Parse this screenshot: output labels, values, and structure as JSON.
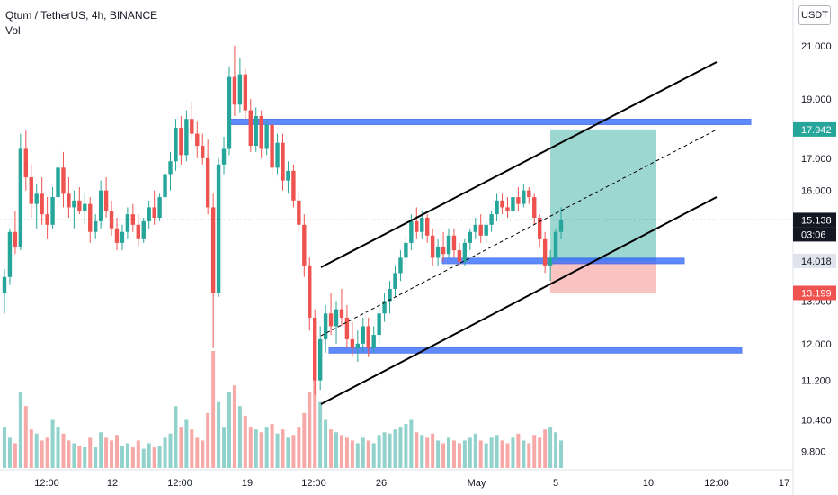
{
  "header": {
    "symbol": "Qtum / TetherUS, 4h, BINANCE",
    "volume_label": "Vol"
  },
  "currency_button": "USDT",
  "colors": {
    "up": "#26a69a",
    "down": "#ef5350",
    "zone_blue": "#2962ff",
    "profit_zone": "#26a69a",
    "loss_zone": "#ef5350",
    "channel": "#000000"
  },
  "price_axis": {
    "ticks": [
      "21.000",
      "19.000",
      "17.000",
      "16.000",
      "13.000",
      "12.000",
      "11.200",
      "10.400",
      "9.800"
    ],
    "scale": "log"
  },
  "time_axis": {
    "ticks": [
      "12:00",
      "12",
      "12:00",
      "19",
      "12:00",
      "26",
      "May",
      "5",
      "10",
      "12:00",
      "17"
    ]
  },
  "price_tags": [
    {
      "text": "17.942",
      "kind": "green"
    },
    {
      "text": "15.138",
      "kind": "dark"
    },
    {
      "text": "03:06",
      "kind": "dark-sub"
    },
    {
      "text": "14.018",
      "kind": "gray"
    },
    {
      "text": "13.199",
      "kind": "red"
    }
  ],
  "chart_data": {
    "type": "candlestick",
    "symbol": "QTUMUSDT",
    "interval": "4h",
    "exchange": "BINANCE",
    "last_price": 15.138,
    "timeframe_remaining": "03:06",
    "long_position": {
      "entry": 14.018,
      "target": 17.942,
      "stop": 13.199
    },
    "horizontal_zones": [
      18.2,
      14.018,
      11.85
    ],
    "channel_note": "ascending parallel channel with dashed midline",
    "ylim": [
      9.5,
      22.5
    ],
    "volume_panel": true,
    "candles": [
      [
        13.2,
        13.8,
        12.7,
        13.6
      ],
      [
        13.6,
        14.9,
        13.4,
        14.8
      ],
      [
        14.8,
        15.4,
        14.2,
        14.4
      ],
      [
        14.4,
        17.8,
        14.3,
        17.3
      ],
      [
        17.3,
        17.9,
        16.0,
        16.4
      ],
      [
        16.4,
        16.8,
        15.2,
        15.6
      ],
      [
        15.6,
        16.2,
        14.9,
        15.9
      ],
      [
        15.9,
        16.4,
        15.0,
        15.3
      ],
      [
        15.3,
        15.8,
        14.6,
        15.0
      ],
      [
        15.0,
        16.1,
        14.9,
        15.8
      ],
      [
        15.8,
        17.0,
        15.6,
        16.7
      ],
      [
        16.7,
        17.2,
        15.5,
        15.9
      ],
      [
        15.9,
        16.4,
        15.2,
        15.5
      ],
      [
        15.5,
        16.0,
        14.9,
        15.7
      ],
      [
        15.7,
        16.1,
        15.3,
        15.4
      ],
      [
        15.4,
        15.9,
        15.0,
        15.6
      ],
      [
        15.6,
        15.8,
        14.5,
        14.8
      ],
      [
        14.8,
        15.3,
        14.6,
        15.1
      ],
      [
        15.1,
        16.3,
        14.9,
        16.0
      ],
      [
        16.0,
        16.4,
        15.2,
        15.4
      ],
      [
        15.4,
        15.7,
        14.7,
        14.9
      ],
      [
        14.9,
        15.2,
        14.3,
        14.5
      ],
      [
        14.5,
        15.0,
        14.3,
        14.8
      ],
      [
        14.8,
        15.5,
        14.6,
        15.3
      ],
      [
        15.3,
        15.6,
        14.8,
        15.0
      ],
      [
        15.0,
        15.3,
        14.4,
        14.6
      ],
      [
        14.6,
        15.2,
        14.5,
        15.1
      ],
      [
        15.1,
        15.7,
        14.9,
        15.5
      ],
      [
        15.5,
        16.0,
        15.0,
        15.2
      ],
      [
        15.2,
        15.9,
        15.1,
        15.8
      ],
      [
        15.8,
        16.8,
        15.6,
        16.5
      ],
      [
        16.5,
        17.2,
        16.0,
        16.9
      ],
      [
        16.9,
        18.3,
        16.6,
        18.0
      ],
      [
        18.0,
        18.4,
        16.8,
        17.1
      ],
      [
        17.1,
        18.6,
        16.9,
        18.3
      ],
      [
        18.3,
        18.9,
        17.6,
        17.8
      ],
      [
        17.8,
        18.2,
        17.0,
        17.4
      ],
      [
        17.4,
        17.8,
        16.8,
        17.0
      ],
      [
        17.0,
        17.6,
        15.3,
        15.5
      ],
      [
        15.5,
        15.9,
        11.9,
        13.2
      ],
      [
        13.2,
        17.0,
        13.1,
        16.8
      ],
      [
        16.8,
        17.7,
        16.5,
        17.3
      ],
      [
        17.3,
        20.2,
        17.1,
        19.8
      ],
      [
        19.8,
        21.0,
        18.4,
        18.8
      ],
      [
        18.8,
        20.5,
        18.5,
        19.9
      ],
      [
        19.9,
        20.1,
        18.3,
        18.6
      ],
      [
        18.6,
        19.0,
        17.2,
        17.4
      ],
      [
        17.4,
        18.7,
        17.2,
        18.4
      ],
      [
        18.4,
        18.6,
        17.0,
        17.3
      ],
      [
        17.3,
        18.3,
        17.1,
        18.1
      ],
      [
        18.1,
        18.3,
        16.4,
        16.7
      ],
      [
        16.7,
        17.8,
        16.5,
        17.5
      ],
      [
        17.5,
        17.8,
        16.0,
        16.3
      ],
      [
        16.3,
        16.9,
        15.9,
        16.6
      ],
      [
        16.6,
        16.8,
        15.5,
        15.7
      ],
      [
        15.7,
        16.0,
        14.8,
        15.0
      ],
      [
        15.0,
        15.3,
        13.6,
        13.9
      ],
      [
        13.9,
        14.1,
        12.3,
        12.6
      ],
      [
        12.6,
        12.8,
        10.9,
        11.2
      ],
      [
        11.2,
        12.4,
        11.0,
        12.1
      ],
      [
        12.1,
        12.9,
        11.8,
        12.7
      ],
      [
        12.7,
        13.2,
        12.2,
        12.4
      ],
      [
        12.4,
        13.0,
        12.0,
        12.8
      ],
      [
        12.8,
        13.3,
        12.4,
        12.6
      ],
      [
        12.6,
        12.9,
        11.9,
        12.1
      ],
      [
        12.1,
        12.5,
        11.7,
        11.9
      ],
      [
        11.9,
        12.3,
        11.6,
        12.0
      ],
      [
        12.0,
        12.6,
        11.8,
        12.4
      ],
      [
        12.4,
        12.6,
        11.7,
        11.9
      ],
      [
        11.9,
        12.4,
        11.8,
        12.2
      ],
      [
        12.2,
        12.9,
        12.0,
        12.7
      ],
      [
        12.7,
        13.2,
        12.5,
        13.0
      ],
      [
        13.0,
        13.5,
        12.7,
        13.3
      ],
      [
        13.3,
        13.9,
        13.1,
        13.7
      ],
      [
        13.7,
        14.3,
        13.5,
        14.1
      ],
      [
        14.1,
        14.7,
        13.9,
        14.5
      ],
      [
        14.5,
        15.3,
        14.3,
        15.1
      ],
      [
        15.1,
        15.5,
        14.6,
        14.8
      ],
      [
        14.8,
        15.4,
        14.6,
        15.2
      ],
      [
        15.2,
        15.3,
        14.5,
        14.7
      ],
      [
        14.7,
        14.9,
        13.9,
        14.1
      ],
      [
        14.1,
        14.6,
        13.9,
        14.4
      ],
      [
        14.4,
        14.8,
        14.0,
        14.2
      ],
      [
        14.2,
        14.9,
        14.1,
        14.7
      ],
      [
        14.7,
        14.9,
        14.1,
        14.3
      ],
      [
        14.3,
        14.5,
        13.9,
        14.0
      ],
      [
        14.0,
        14.6,
        13.9,
        14.5
      ],
      [
        14.5,
        14.9,
        14.3,
        14.8
      ],
      [
        14.8,
        15.2,
        14.6,
        15.0
      ],
      [
        15.0,
        15.3,
        14.5,
        14.7
      ],
      [
        14.7,
        15.1,
        14.5,
        15.0
      ],
      [
        15.0,
        15.4,
        14.8,
        15.3
      ],
      [
        15.3,
        15.9,
        15.1,
        15.7
      ],
      [
        15.7,
        15.9,
        15.3,
        15.5
      ],
      [
        15.5,
        15.8,
        15.2,
        15.4
      ],
      [
        15.4,
        15.9,
        15.2,
        15.8
      ],
      [
        15.8,
        16.1,
        15.4,
        15.6
      ],
      [
        15.6,
        16.2,
        15.5,
        16.0
      ],
      [
        16.0,
        16.1,
        15.6,
        15.8
      ],
      [
        15.8,
        15.9,
        15.0,
        15.2
      ],
      [
        15.2,
        15.3,
        14.4,
        14.6
      ],
      [
        14.6,
        14.8,
        13.7,
        13.9
      ],
      [
        13.9,
        14.3,
        13.5,
        14.1
      ],
      [
        14.1,
        14.9,
        14.0,
        14.8
      ],
      [
        14.8,
        15.5,
        14.6,
        15.138
      ]
    ],
    "volume": [
      30,
      22,
      18,
      55,
      45,
      28,
      25,
      20,
      22,
      35,
      30,
      25,
      20,
      18,
      16,
      15,
      22,
      15,
      26,
      22,
      20,
      24,
      16,
      18,
      15,
      20,
      14,
      18,
      15,
      16,
      22,
      25,
      45,
      30,
      35,
      28,
      22,
      20,
      40,
      85,
      48,
      30,
      55,
      60,
      45,
      38,
      30,
      28,
      26,
      30,
      32,
      25,
      28,
      22,
      24,
      30,
      40,
      55,
      80,
      48,
      35,
      28,
      26,
      24,
      22,
      20,
      18,
      22,
      20,
      18,
      24,
      26,
      25,
      28,
      30,
      32,
      35,
      26,
      24,
      22,
      25,
      20,
      18,
      22,
      20,
      18,
      20,
      22,
      25,
      20,
      18,
      22,
      24,
      20,
      18,
      22,
      25,
      20,
      18,
      24,
      22,
      28,
      30,
      26,
      20
    ]
  }
}
